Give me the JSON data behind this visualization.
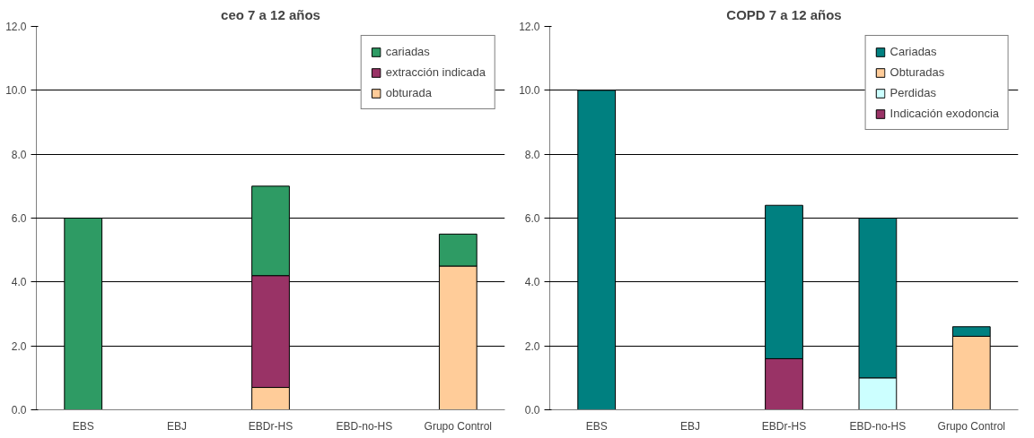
{
  "chart_data": [
    {
      "type": "bar",
      "title": "ceo 7 a 12 años",
      "categories": [
        "EBS",
        "EBJ",
        "EBDr-HS",
        "EBD-no-HS",
        "Grupo Control"
      ],
      "stacked": true,
      "series": [
        {
          "name": "obturada",
          "color": "#ffcc99",
          "values": [
            null,
            null,
            0.7,
            null,
            4.5
          ]
        },
        {
          "name": "extracción indicada",
          "color": "#993366",
          "values": [
            null,
            null,
            3.5,
            null,
            null
          ]
        },
        {
          "name": "cariadas",
          "color": "#2e9b64",
          "values": [
            6.0,
            null,
            2.8,
            null,
            1.0
          ]
        }
      ],
      "ylim": [
        0,
        12
      ],
      "yticks": [
        {
          "value": 0,
          "label": "0.0"
        },
        {
          "value": 2,
          "label": "2.0"
        },
        {
          "value": 4,
          "label": "4.0"
        },
        {
          "value": 6,
          "label": "6.0"
        },
        {
          "value": 8,
          "label": "8.0"
        },
        {
          "value": 10,
          "label": "10.0"
        },
        {
          "value": 12,
          "label": "12.0"
        }
      ],
      "grid": "y",
      "legend": "top right"
    },
    {
      "type": "bar",
      "title": "COPD 7 a 12 años",
      "categories": [
        "EBS",
        "EBJ",
        "EBDr-HS",
        "EBD-no-HS",
        "Grupo Control"
      ],
      "stacked": true,
      "series": [
        {
          "name": "Indicación exodoncia",
          "color": "#993366",
          "values": [
            null,
            null,
            1.6,
            null,
            null
          ]
        },
        {
          "name": "Perdidas",
          "color": "#ccffff",
          "values": [
            null,
            null,
            null,
            1.0,
            null
          ]
        },
        {
          "name": "Obturadas",
          "color": "#ffcc99",
          "values": [
            null,
            null,
            null,
            null,
            2.3
          ]
        },
        {
          "name": "Cariadas",
          "color": "#008080",
          "values": [
            10.0,
            null,
            4.8,
            5.0,
            0.3
          ]
        }
      ],
      "ylim": [
        0,
        12
      ],
      "yticks": [
        {
          "value": 0,
          "label": "0.0"
        },
        {
          "value": 2,
          "label": "2.0"
        },
        {
          "value": 4,
          "label": "4.0"
        },
        {
          "value": 6,
          "label": "6.0"
        },
        {
          "value": 8,
          "label": "8.0"
        },
        {
          "value": 10,
          "label": "10.0"
        },
        {
          "value": 12,
          "label": "12.0"
        }
      ],
      "grid": "y",
      "legend": "top right"
    }
  ]
}
